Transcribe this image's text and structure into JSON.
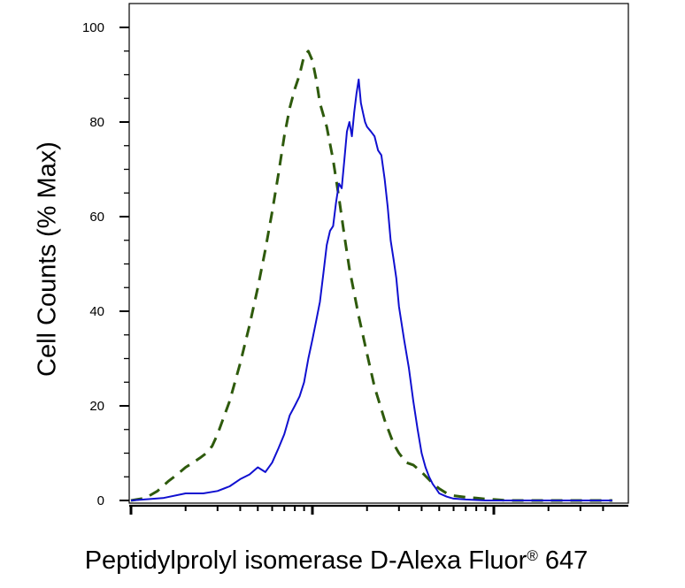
{
  "chart_data": {
    "type": "line",
    "title": "",
    "xlabel": "Peptidylprolyl isomerase D-Alexa Fluor",
    "xlabel_sup": "®",
    "xlabel_suffix": " 647",
    "ylabel": "Cell Counts (% Max)",
    "x_scale": "log",
    "xlim": [
      10,
      4500
    ],
    "ylim": [
      0,
      105
    ],
    "x_major_ticks": [
      10,
      100,
      1000
    ],
    "y_ticks": [
      0,
      20,
      40,
      60,
      80,
      100
    ],
    "y_tick_labels": [
      "0",
      "20",
      "40",
      "60",
      "80",
      "100"
    ],
    "grid": false,
    "legend": "none",
    "series": [
      {
        "style": "dashed",
        "color": "#2e5a0c",
        "x": [
          10,
          12,
          14,
          16,
          18,
          20,
          22,
          24,
          26,
          28,
          30,
          35,
          40,
          45,
          50,
          55,
          60,
          65,
          70,
          75,
          80,
          85,
          90,
          95,
          100,
          105,
          110,
          120,
          130,
          140,
          150,
          160,
          180,
          200,
          220,
          250,
          280,
          300,
          330,
          360,
          400,
          450,
          500,
          550,
          600,
          700,
          800,
          900,
          1000,
          1100,
          1200,
          1500,
          2000,
          3000,
          4500
        ],
        "y": [
          0,
          0.5,
          2,
          4,
          5.5,
          7,
          8,
          9,
          10,
          11.5,
          14,
          21,
          29,
          37,
          45,
          53,
          61,
          69,
          77,
          83,
          87,
          90,
          94,
          95,
          93,
          89,
          84,
          79,
          72,
          64,
          56,
          49,
          39,
          31,
          24,
          17,
          12,
          10,
          8,
          7.5,
          6,
          4,
          2.5,
          1.5,
          1,
          0.7,
          0.5,
          0.3,
          0.2,
          0.1,
          0,
          0,
          0,
          0,
          0
        ]
      },
      {
        "style": "solid",
        "color": "#1010d0",
        "x": [
          10,
          15,
          20,
          25,
          30,
          35,
          40,
          45,
          50,
          55,
          60,
          65,
          70,
          75,
          80,
          85,
          90,
          95,
          100,
          105,
          110,
          115,
          120,
          125,
          130,
          135,
          140,
          145,
          150,
          155,
          160,
          165,
          170,
          175,
          180,
          185,
          190,
          195,
          200,
          210,
          220,
          230,
          240,
          250,
          260,
          270,
          280,
          290,
          300,
          320,
          340,
          360,
          380,
          400,
          420,
          440,
          460,
          480,
          500,
          550,
          600,
          700,
          800,
          900,
          1000,
          1200,
          1500,
          2000,
          3000,
          4500
        ],
        "y": [
          0,
          0.5,
          1.5,
          1.5,
          2,
          3,
          4.5,
          5.5,
          7,
          6,
          8,
          11,
          14,
          18,
          20,
          22,
          25,
          30,
          34,
          38,
          42,
          48,
          54,
          57,
          58,
          63,
          67,
          66,
          72,
          78,
          80,
          77,
          82,
          86,
          89,
          84,
          82,
          80,
          79,
          78,
          77,
          74,
          73,
          68,
          62,
          55,
          51,
          47,
          41,
          34,
          28,
          21,
          15,
          10,
          7,
          5,
          3.5,
          2.5,
          1.5,
          0.8,
          0.4,
          0.2,
          0.1,
          0,
          0,
          0,
          0,
          0,
          0,
          0
        ]
      }
    ]
  }
}
